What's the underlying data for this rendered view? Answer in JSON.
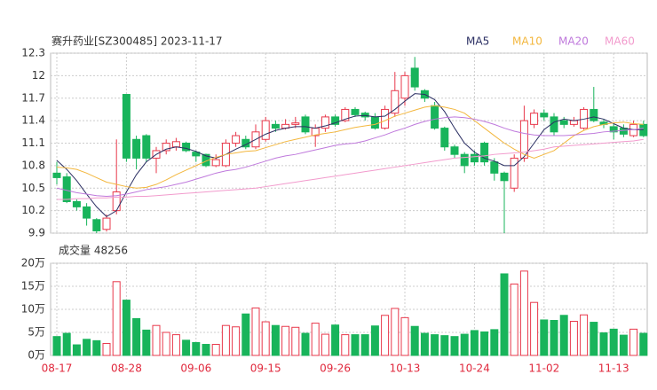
{
  "chart_data": [
    {
      "type": "candlestick",
      "title": "赛升药业[SZ300485] 2023-11-17",
      "categories": [
        "08-17",
        null,
        null,
        null,
        null,
        null,
        null,
        "08-28",
        null,
        null,
        null,
        null,
        null,
        null,
        "09-06",
        null,
        null,
        null,
        null,
        null,
        null,
        "09-15",
        null,
        null,
        null,
        null,
        null,
        null,
        "09-26",
        null,
        null,
        null,
        null,
        null,
        null,
        "10-13",
        null,
        null,
        null,
        null,
        null,
        null,
        "10-24",
        null,
        null,
        null,
        null,
        null,
        null,
        "11-02",
        null,
        null,
        null,
        null,
        null,
        null,
        "11-13",
        null,
        null,
        null
      ],
      "open": [
        10.7,
        10.65,
        10.32,
        10.25,
        10.08,
        9.95,
        10.2,
        11.75,
        11.15,
        11.2,
        10.9,
        11.0,
        11.05,
        11.1,
        10.98,
        10.95,
        10.8,
        10.8,
        11.1,
        11.15,
        11.05,
        11.15,
        11.35,
        11.3,
        11.35,
        11.45,
        11.2,
        11.3,
        11.45,
        11.4,
        11.55,
        11.5,
        11.45,
        11.3,
        11.5,
        11.7,
        12.1,
        11.8,
        11.6,
        11.3,
        11.05,
        10.95,
        10.95,
        11.1,
        10.85,
        10.7,
        10.5,
        10.9,
        11.35,
        11.5,
        11.45,
        11.4,
        11.35,
        11.3,
        11.55,
        11.38,
        11.32,
        11.3,
        11.2,
        11.35
      ],
      "close": [
        10.64,
        10.32,
        10.25,
        10.1,
        9.93,
        10.1,
        10.45,
        10.9,
        10.9,
        10.9,
        11.0,
        11.1,
        11.12,
        11.0,
        10.93,
        10.8,
        10.88,
        11.1,
        11.2,
        11.05,
        11.25,
        11.4,
        11.3,
        11.35,
        11.37,
        11.25,
        11.3,
        11.45,
        11.35,
        11.55,
        11.48,
        11.45,
        11.3,
        11.55,
        11.8,
        12.0,
        11.85,
        11.7,
        11.3,
        11.05,
        10.95,
        10.8,
        10.85,
        10.85,
        10.7,
        10.6,
        10.9,
        11.4,
        11.5,
        11.45,
        11.25,
        11.35,
        11.4,
        11.55,
        11.4,
        11.35,
        11.25,
        11.22,
        11.35,
        11.2
      ],
      "high": [
        10.85,
        10.7,
        10.35,
        10.3,
        10.1,
        10.15,
        11.15,
        11.75,
        11.2,
        11.22,
        11.05,
        11.15,
        11.17,
        11.12,
        11.0,
        10.96,
        10.95,
        11.15,
        11.25,
        11.2,
        11.35,
        11.45,
        11.4,
        11.42,
        11.45,
        11.48,
        11.35,
        11.48,
        11.48,
        11.58,
        11.58,
        11.52,
        11.5,
        11.6,
        12.05,
        12.05,
        12.25,
        11.82,
        11.65,
        11.32,
        11.08,
        10.98,
        11.0,
        11.12,
        10.9,
        10.72,
        10.95,
        11.6,
        11.55,
        11.55,
        11.5,
        11.45,
        11.45,
        11.58,
        11.85,
        11.42,
        11.36,
        11.35,
        11.4,
        11.4
      ],
      "low": [
        10.55,
        10.3,
        10.2,
        10.0,
        9.9,
        9.92,
        10.15,
        10.85,
        10.75,
        10.85,
        10.7,
        10.95,
        11.0,
        10.98,
        10.85,
        10.78,
        10.78,
        10.78,
        11.05,
        11.02,
        11.02,
        11.12,
        11.25,
        11.28,
        11.3,
        11.22,
        11.05,
        11.25,
        11.32,
        11.38,
        11.45,
        11.4,
        11.28,
        11.28,
        11.45,
        11.6,
        11.8,
        11.65,
        11.28,
        11.0,
        10.9,
        10.7,
        10.8,
        10.8,
        10.6,
        9.9,
        10.45,
        10.85,
        11.3,
        11.4,
        11.2,
        11.3,
        11.32,
        11.28,
        11.38,
        11.3,
        11.15,
        11.18,
        11.18,
        11.18
      ],
      "up_color": "#e8384b",
      "down_color": "#18b45b",
      "series": [
        {
          "name": "MA5",
          "color": "#2b2f63",
          "values": [
            10.87,
            10.75,
            10.6,
            10.42,
            10.25,
            10.12,
            10.2,
            10.45,
            10.68,
            10.85,
            10.95,
            11.02,
            11.05,
            11.03,
            10.99,
            10.93,
            10.9,
            10.95,
            11.02,
            11.08,
            11.15,
            11.22,
            11.27,
            11.3,
            11.32,
            11.32,
            11.3,
            11.33,
            11.37,
            11.42,
            11.46,
            11.47,
            11.45,
            11.46,
            11.55,
            11.66,
            11.76,
            11.75,
            11.68,
            11.52,
            11.3,
            11.1,
            10.98,
            10.9,
            10.86,
            10.8,
            10.8,
            10.92,
            11.1,
            11.28,
            11.38,
            11.42,
            11.4,
            11.42,
            11.45,
            11.42,
            11.36,
            11.3,
            11.28,
            11.28
          ]
        },
        {
          "name": "MA10",
          "color": "#f3b73e",
          "values": [
            10.78,
            10.77,
            10.75,
            10.7,
            10.64,
            10.58,
            10.55,
            10.52,
            10.5,
            10.51,
            10.55,
            10.61,
            10.68,
            10.74,
            10.8,
            10.86,
            10.91,
            10.95,
            10.97,
            10.99,
            11.0,
            11.04,
            11.08,
            11.12,
            11.15,
            11.18,
            11.21,
            11.23,
            11.25,
            11.28,
            11.31,
            11.33,
            11.35,
            11.4,
            11.46,
            11.5,
            11.54,
            11.58,
            11.6,
            11.58,
            11.55,
            11.5,
            11.4,
            11.3,
            11.2,
            11.1,
            11.02,
            10.95,
            10.9,
            10.95,
            11.0,
            11.1,
            11.2,
            11.27,
            11.32,
            11.35,
            11.37,
            11.38,
            11.36,
            11.35
          ]
        },
        {
          "name": "MA20",
          "color": "#bf79dc",
          "values": [
            10.5,
            10.47,
            10.44,
            10.42,
            10.4,
            10.39,
            10.4,
            10.42,
            10.45,
            10.48,
            10.5,
            10.52,
            10.55,
            10.58,
            10.62,
            10.66,
            10.7,
            10.73,
            10.75,
            10.78,
            10.82,
            10.86,
            10.9,
            10.93,
            10.95,
            10.98,
            11.01,
            11.04,
            11.07,
            11.09,
            11.1,
            11.13,
            11.17,
            11.21,
            11.26,
            11.3,
            11.35,
            11.39,
            11.42,
            11.44,
            11.45,
            11.44,
            11.42,
            11.39,
            11.35,
            11.3,
            11.26,
            11.23,
            11.21,
            11.2,
            11.2,
            11.2,
            11.21,
            11.22,
            11.23,
            11.25,
            11.26,
            11.27,
            11.28,
            11.3
          ]
        },
        {
          "name": "MA60",
          "color": "#f29bcd",
          "values": [
            10.35,
            10.35,
            10.36,
            10.36,
            10.37,
            10.37,
            10.38,
            10.38,
            10.39,
            10.39,
            10.4,
            10.41,
            10.42,
            10.43,
            10.44,
            10.45,
            10.46,
            10.47,
            10.48,
            10.49,
            10.5,
            10.52,
            10.54,
            10.56,
            10.58,
            10.6,
            10.62,
            10.64,
            10.66,
            10.68,
            10.7,
            10.72,
            10.74,
            10.76,
            10.78,
            10.8,
            10.82,
            10.84,
            10.86,
            10.88,
            10.9,
            10.91,
            10.92,
            10.93,
            10.95,
            10.96,
            10.97,
            10.98,
            11.0,
            11.02,
            11.05,
            11.06,
            11.07,
            11.08,
            11.09,
            11.1,
            11.11,
            11.12,
            11.13,
            11.15
          ]
        }
      ],
      "ylim": [
        9.9,
        12.3
      ],
      "yticks": [
        12.3,
        12,
        11.7,
        11.4,
        11.1,
        10.8,
        10.5,
        10.2,
        9.9
      ]
    },
    {
      "type": "bar",
      "title": "成交量 48256",
      "values": [
        4.1,
        4.8,
        2.3,
        3.5,
        3.2,
        2.6,
        16,
        12,
        8,
        5.5,
        6.5,
        5,
        4.5,
        3.3,
        2.8,
        2.4,
        2.4,
        6.5,
        6.2,
        9,
        10.3,
        7.3,
        6.5,
        6.3,
        6.1,
        4.8,
        7,
        4.6,
        6.6,
        4.5,
        4.5,
        4.5,
        6.4,
        8.7,
        10.2,
        8.2,
        6.3,
        4.8,
        4.5,
        4.3,
        4.1,
        4.6,
        5.4,
        5.1,
        5.6,
        17.7,
        15.5,
        18.3,
        11.5,
        7.7,
        7.6,
        8.7,
        7.4,
        8.8,
        7.2,
        4.9,
        5.7,
        4.4,
        5.7,
        4.8
      ],
      "ylim": [
        0,
        20
      ],
      "yticks": [
        {
          "value": 20,
          "label": "20万"
        },
        {
          "value": 15,
          "label": "15万"
        },
        {
          "value": 10,
          "label": "10万"
        },
        {
          "value": 5,
          "label": "5万"
        },
        {
          "value": 0,
          "label": "0万"
        }
      ]
    }
  ]
}
